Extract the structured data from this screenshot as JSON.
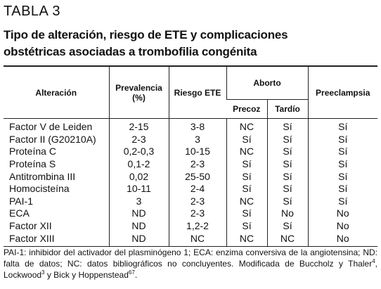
{
  "label": "TABLA 3",
  "title": [
    "Tipo de alteración, riesgo de ETE y complicaciones",
    "obstétricas asociadas a trombofilia congénita"
  ],
  "table": {
    "header": {
      "alteracion": "Alteración",
      "prevalencia": [
        "Prevalencia",
        "(%)"
      ],
      "riesgo": "Riesgo ETE",
      "aborto": "Aborto",
      "precoz": "Precoz",
      "tardio": "Tardío",
      "preeclampsia": "Preeclampsia"
    },
    "rows": [
      [
        "Factor V de Leiden",
        "2-15",
        "3-8",
        "NC",
        "Sí",
        "Sí"
      ],
      [
        "Factor II (G20210A)",
        "2-3",
        "3",
        "Sí",
        "Sí",
        "Sí"
      ],
      [
        "Proteína C",
        "0,2-0,3",
        "10-15",
        "NC",
        "Sí",
        "Sí"
      ],
      [
        "Proteína S",
        "0,1-2",
        "2-3",
        "Sí",
        "Sí",
        "Sí"
      ],
      [
        "Antitrombina III",
        "0,02",
        "25-50",
        "Sí",
        "Sí",
        "Sí"
      ],
      [
        "Homocisteína",
        "10-11",
        "2-4",
        "Sí",
        "Sí",
        "Sí"
      ],
      [
        "PAI-1",
        "3",
        "2-3",
        "NC",
        "Sí",
        "Sí"
      ],
      [
        "ECA",
        "ND",
        "2-3",
        "Sí",
        "No",
        "No"
      ],
      [
        "Factor XII",
        "ND",
        "1,2-2",
        "Sí",
        "Sí",
        "No"
      ],
      [
        "Factor XIII",
        "ND",
        "NC",
        "NC",
        "NC",
        "No"
      ]
    ]
  },
  "footnote": [
    "PAI-1: inhibidor del activador del plasminógeno 1; ECA: enzima conversiva de la angiotensina; ND: falta de datos; NC: datos bibliográficos no concluyentes. Modificada de Buccholz y Thaler",
    "4",
    ", Lockwood",
    "3",
    " y Bick y Hoppenstead",
    "67",
    "."
  ]
}
